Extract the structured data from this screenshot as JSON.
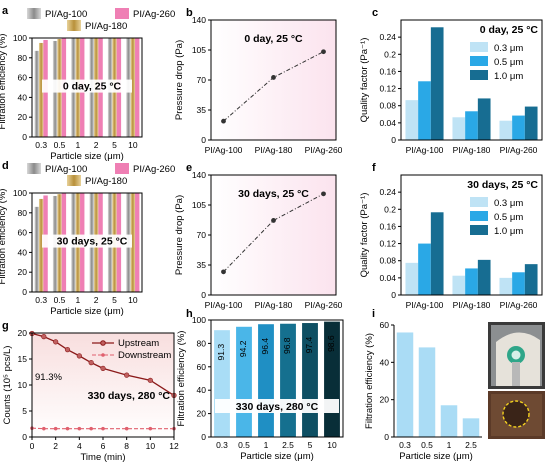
{
  "chart_data": [
    {
      "panel": "a",
      "type": "bar",
      "ylabel": "Filtration efficiency (%)",
      "xlabel": "Particle size (μm)",
      "categories": [
        "0.3",
        "0.5",
        "1",
        "2",
        "5",
        "10"
      ],
      "ylim": [
        0,
        100
      ],
      "yticks": [
        0,
        20,
        40,
        60,
        80,
        100
      ],
      "annotation": "0 day, 25 °C",
      "series": [
        {
          "name": "PI/Ag-100",
          "color": "#9e9e9e",
          "values": [
            87,
            97,
            99.5,
            99.8,
            99.9,
            99.9
          ]
        },
        {
          "name": "PI/Ag-180",
          "color": "#c8a24a",
          "values": [
            95,
            99,
            99.8,
            99.9,
            99.9,
            99.9
          ]
        },
        {
          "name": "PI/Ag-260",
          "color": "#ef7fb4",
          "values": [
            98,
            99.6,
            99.9,
            99.9,
            99.9,
            99.9
          ]
        }
      ]
    },
    {
      "panel": "b",
      "type": "line",
      "ylabel": "Pressure drop (Pa)",
      "categories": [
        "PI/Ag-100",
        "PI/Ag-180",
        "PI/Ag-260"
      ],
      "values": [
        22,
        73,
        103
      ],
      "ylim": [
        0,
        140
      ],
      "yticks": [
        0,
        35,
        70,
        105,
        140
      ],
      "annotation": "0 day, 25 °C"
    },
    {
      "panel": "c",
      "type": "bar",
      "ylabel": "Quality factor (Pa⁻¹)",
      "categories": [
        "PI/Ag-100",
        "PI/Ag-180",
        "PI/Ag-260"
      ],
      "ylim": [
        0,
        0.28
      ],
      "yticks": [
        0,
        0.04,
        0.08,
        0.12,
        0.16,
        0.2,
        0.24
      ],
      "annotation": "0 day, 25 °C",
      "series": [
        {
          "name": "0.3 μm",
          "color": "#bfe3f5",
          "values": [
            0.093,
            0.053,
            0.045
          ]
        },
        {
          "name": "0.5 μm",
          "color": "#2aa8e6",
          "values": [
            0.137,
            0.067,
            0.057
          ]
        },
        {
          "name": "1.0 μm",
          "color": "#176d92",
          "values": [
            0.263,
            0.097,
            0.078
          ]
        }
      ]
    },
    {
      "panel": "d",
      "type": "bar",
      "ylabel": "Filtration efficiency (%)",
      "xlabel": "Particle size (μm)",
      "categories": [
        "0.3",
        "0.5",
        "1",
        "2",
        "5",
        "10"
      ],
      "ylim": [
        0,
        100
      ],
      "yticks": [
        0,
        20,
        40,
        60,
        80,
        100
      ],
      "annotation": "30 days, 25 °C",
      "series": [
        {
          "name": "PI/Ag-100",
          "color": "#9e9e9e",
          "values": [
            86,
            97,
            99.4,
            99.8,
            99.9,
            99.9
          ]
        },
        {
          "name": "PI/Ag-180",
          "color": "#c8a24a",
          "values": [
            94,
            98.8,
            99.7,
            99.9,
            99.9,
            99.9
          ]
        },
        {
          "name": "PI/Ag-260",
          "color": "#ef7fb4",
          "values": [
            97.5,
            99.5,
            99.9,
            99.9,
            99.9,
            99.9
          ]
        }
      ]
    },
    {
      "panel": "e",
      "type": "line",
      "ylabel": "Pressure drop (Pa)",
      "categories": [
        "PI/Ag-100",
        "PI/Ag-180",
        "PI/Ag-260"
      ],
      "values": [
        27,
        87,
        118
      ],
      "ylim": [
        0,
        140
      ],
      "yticks": [
        0,
        35,
        70,
        105,
        140
      ],
      "annotation": "30 days, 25 °C"
    },
    {
      "panel": "f",
      "type": "bar",
      "ylabel": "Quality factor (Pa⁻¹)",
      "categories": [
        "PI/Ag-100",
        "PI/Ag-180",
        "PI/Ag-260"
      ],
      "ylim": [
        0,
        0.28
      ],
      "yticks": [
        0,
        0.04,
        0.08,
        0.12,
        0.16,
        0.2,
        0.24
      ],
      "annotation": "30 days, 25 °C",
      "series": [
        {
          "name": "0.3 μm",
          "color": "#bfe3f5",
          "values": [
            0.075,
            0.045,
            0.04
          ]
        },
        {
          "name": "0.5 μm",
          "color": "#2aa8e6",
          "values": [
            0.12,
            0.062,
            0.053
          ]
        },
        {
          "name": "1.0 μm",
          "color": "#176d92",
          "values": [
            0.193,
            0.082,
            0.072
          ]
        }
      ]
    },
    {
      "panel": "g",
      "type": "line",
      "ylabel": "Counts (10⁵ pcs/L)",
      "xlabel": "Time (min)",
      "ylim": [
        0,
        20
      ],
      "yticks": [
        0,
        5,
        10,
        15,
        20
      ],
      "xlim": [
        0,
        12
      ],
      "xticks": [
        0,
        2,
        4,
        6,
        8,
        10,
        12
      ],
      "annotation": "330 days, 280 °C",
      "note": "91.3%",
      "series": [
        {
          "name": "Upstream",
          "color": "#8b1a1a",
          "x": [
            0,
            1,
            2,
            3,
            4,
            5,
            6,
            8,
            10,
            12
          ],
          "y": [
            19.9,
            19.3,
            18.3,
            16.8,
            15.6,
            14.3,
            13.2,
            11.9,
            10.9,
            8.0
          ]
        },
        {
          "name": "Downstream",
          "color": "#e0606e",
          "x": [
            0,
            1,
            2,
            3,
            4,
            5,
            6,
            8,
            10,
            12
          ],
          "y": [
            1.7,
            1.6,
            1.6,
            1.6,
            1.6,
            1.6,
            1.6,
            1.6,
            1.6,
            1.6
          ]
        }
      ]
    },
    {
      "panel": "h",
      "type": "bar",
      "ylabel": "Filtration efficiency (%)",
      "xlabel": "Particle size (μm)",
      "categories": [
        "0.3",
        "0.5",
        "1",
        "2.5",
        "5",
        "10"
      ],
      "values": [
        91.3,
        94.2,
        96.4,
        96.8,
        97.4,
        98.6
      ],
      "value_labels": [
        "91.3",
        "94.2",
        "96.4",
        "96.8",
        "97.4",
        "98.6"
      ],
      "colors": [
        "#a9ddf6",
        "#4ab6e8",
        "#1f8fc4",
        "#15708f",
        "#0e4f63",
        "#082e38"
      ],
      "ylim": [
        0,
        100
      ],
      "yticks": [
        0,
        20,
        40,
        60,
        80,
        100
      ],
      "annotation": "330 days, 280 °C"
    },
    {
      "panel": "i",
      "type": "bar",
      "ylabel": "Filtration efficiency (%)",
      "xlabel": "Particle size (μm)",
      "categories": [
        "0.3",
        "0.5",
        "1",
        "2.5"
      ],
      "values": [
        56,
        48,
        17,
        10
      ],
      "color": "#aadcf5",
      "ylim": [
        0,
        60
      ],
      "yticks": [
        0,
        20,
        40,
        60
      ]
    }
  ]
}
